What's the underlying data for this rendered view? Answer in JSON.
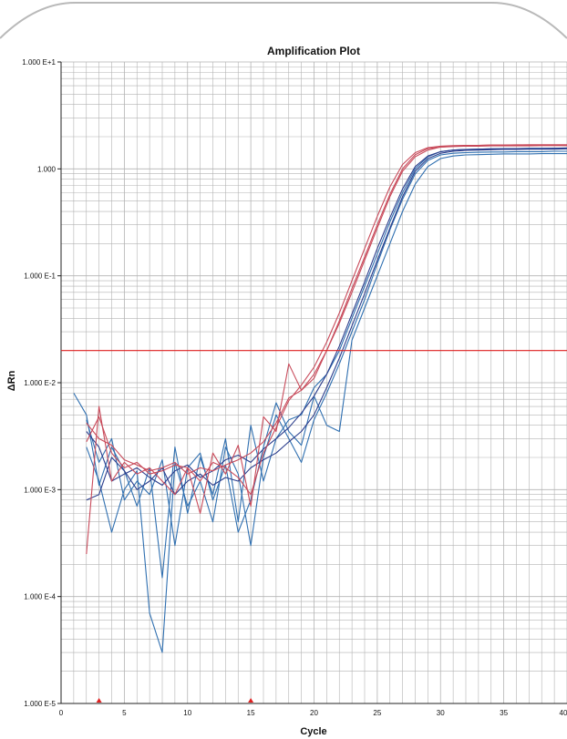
{
  "colors": {
    "background": "#ffffff",
    "frame_stroke": "#b9b9b9",
    "grid": "#b3b3b3",
    "threshold": "#e02020",
    "marker": "#e02020",
    "series_blue": "#2f6fb0",
    "series_navy": "#2b3d8c",
    "series_red": "#c84a5a"
  },
  "chart_data": {
    "type": "line",
    "title": "Amplification Plot",
    "xlabel": "Cycle",
    "ylabel": "ΔRn",
    "yscale": "log",
    "xlim": [
      0,
      40
    ],
    "ylim": [
      1e-05,
      10
    ],
    "x_ticks": [
      "0",
      "5",
      "10",
      "15",
      "20",
      "25",
      "30",
      "35",
      "40"
    ],
    "y_ticks": [
      "1.000 E-5",
      "1.000 E-4",
      "1.000 E-3",
      "1.000 E-2",
      "1.000 E-1",
      "1.000",
      "1.000 E+1"
    ],
    "grid": true,
    "threshold": 0.02,
    "baseline_markers_cycle": [
      3,
      15
    ],
    "series": [
      {
        "color_key": "series_blue",
        "x": [
          1,
          2,
          3,
          4,
          5,
          6,
          7,
          8,
          9,
          10,
          11,
          12,
          13,
          14,
          15,
          16,
          17,
          18,
          19,
          20,
          21,
          22,
          23,
          24,
          25,
          26,
          27,
          28,
          29,
          30,
          31,
          32,
          33,
          34,
          35,
          36,
          37,
          38,
          39,
          40
        ],
        "values": [
          0.008,
          0.005,
          0.0011,
          0.0025,
          0.0015,
          0.0007,
          0.0016,
          0.00015,
          0.0025,
          0.0006,
          0.002,
          0.0009,
          0.003,
          0.0005,
          0.004,
          0.0012,
          0.003,
          0.0045,
          0.005,
          0.009,
          0.012,
          0.02,
          0.04,
          0.08,
          0.16,
          0.32,
          0.6,
          1.0,
          1.3,
          1.45,
          1.5,
          1.52,
          1.53,
          1.54,
          1.55,
          1.55,
          1.56,
          1.56,
          1.56,
          1.57
        ]
      },
      {
        "color_key": "series_blue",
        "x": [
          2,
          3,
          4,
          5,
          6,
          7,
          8,
          9,
          10,
          11,
          12,
          13,
          14,
          15,
          16,
          17,
          18,
          19,
          20,
          21,
          22,
          23,
          24,
          25,
          26,
          27,
          28,
          29,
          30,
          31,
          32,
          33,
          34,
          35,
          36,
          37,
          38,
          39,
          40
        ],
        "values": [
          0.0025,
          0.0012,
          0.0004,
          0.001,
          0.0015,
          7e-05,
          3e-05,
          0.0018,
          0.0007,
          0.0012,
          0.0005,
          0.0025,
          0.0014,
          0.0003,
          0.002,
          0.005,
          0.003,
          0.0018,
          0.0045,
          0.008,
          0.015,
          0.03,
          0.06,
          0.13,
          0.27,
          0.52,
          0.9,
          1.2,
          1.35,
          1.4,
          1.42,
          1.43,
          1.44,
          1.44,
          1.45,
          1.45,
          1.45,
          1.46,
          1.46
        ]
      },
      {
        "color_key": "series_blue",
        "x": [
          2,
          3,
          4,
          5,
          6,
          7,
          8,
          9,
          10,
          11,
          12,
          13,
          14,
          15,
          16,
          17,
          18,
          19,
          20,
          21,
          22,
          23,
          24,
          25,
          26,
          27,
          28,
          29,
          30,
          31,
          32,
          33,
          34,
          35,
          36,
          37,
          38,
          39,
          40
        ],
        "values": [
          0.0045,
          0.0018,
          0.003,
          0.0008,
          0.0012,
          0.0009,
          0.0019,
          0.0003,
          0.0016,
          0.0022,
          0.0008,
          0.0017,
          0.0004,
          0.0008,
          0.0025,
          0.0065,
          0.0035,
          0.0026,
          0.0075,
          0.004,
          0.0035,
          0.025,
          0.05,
          0.1,
          0.2,
          0.4,
          0.72,
          1.05,
          1.25,
          1.32,
          1.35,
          1.36,
          1.37,
          1.38,
          1.38,
          1.38,
          1.39,
          1.39,
          1.39
        ]
      },
      {
        "color_key": "series_navy",
        "x": [
          2,
          3,
          4,
          5,
          6,
          7,
          8,
          9,
          10,
          11,
          12,
          13,
          14,
          15,
          16,
          17,
          18,
          19,
          20,
          21,
          22,
          23,
          24,
          25,
          26,
          27,
          28,
          29,
          30,
          31,
          32,
          33,
          34,
          35,
          36,
          37,
          38,
          39,
          40
        ],
        "values": [
          0.0008,
          0.0009,
          0.002,
          0.0015,
          0.001,
          0.0012,
          0.0016,
          0.0009,
          0.0012,
          0.0014,
          0.0011,
          0.0013,
          0.0012,
          0.0016,
          0.0019,
          0.0022,
          0.0028,
          0.0035,
          0.005,
          0.009,
          0.017,
          0.034,
          0.068,
          0.14,
          0.28,
          0.55,
          0.95,
          1.25,
          1.4,
          1.46,
          1.49,
          1.5,
          1.51,
          1.52,
          1.52,
          1.53,
          1.53,
          1.53,
          1.54
        ]
      },
      {
        "color_key": "series_navy",
        "x": [
          2,
          3,
          4,
          5,
          6,
          7,
          8,
          9,
          10,
          11,
          12,
          13,
          14,
          15,
          16,
          17,
          18,
          19,
          20,
          21,
          22,
          23,
          24,
          25,
          26,
          27,
          28,
          29,
          30,
          31,
          32,
          33,
          34,
          35,
          36,
          37,
          38,
          39,
          40
        ],
        "values": [
          0.0035,
          0.0025,
          0.0012,
          0.0014,
          0.0016,
          0.0013,
          0.0011,
          0.0015,
          0.0017,
          0.0013,
          0.0015,
          0.0019,
          0.0021,
          0.0018,
          0.0024,
          0.003,
          0.0038,
          0.0052,
          0.0075,
          0.012,
          0.022,
          0.044,
          0.088,
          0.18,
          0.35,
          0.65,
          1.05,
          1.32,
          1.45,
          1.5,
          1.52,
          1.53,
          1.54,
          1.54,
          1.55,
          1.55,
          1.55,
          1.56,
          1.56
        ]
      },
      {
        "color_key": "series_red",
        "x": [
          2,
          3,
          4,
          5,
          6,
          7,
          8,
          9,
          10,
          11,
          12,
          13,
          14,
          15,
          16,
          17,
          18,
          19,
          20,
          21,
          22,
          23,
          24,
          25,
          26,
          27,
          28,
          29,
          30,
          31,
          32,
          33,
          34,
          35,
          36,
          37,
          38,
          39,
          40
        ],
        "values": [
          0.00025,
          0.006,
          0.0012,
          0.0018,
          0.0014,
          0.0016,
          0.0012,
          0.0009,
          0.0016,
          0.0006,
          0.0022,
          0.0014,
          0.0026,
          0.0007,
          0.0048,
          0.0035,
          0.015,
          0.0085,
          0.011,
          0.02,
          0.036,
          0.07,
          0.14,
          0.28,
          0.55,
          0.95,
          1.3,
          1.5,
          1.6,
          1.63,
          1.65,
          1.66,
          1.67,
          1.67,
          1.68,
          1.68,
          1.68,
          1.68,
          1.68
        ]
      },
      {
        "color_key": "series_red",
        "x": [
          2,
          3,
          4,
          5,
          6,
          7,
          8,
          9,
          10,
          11,
          12,
          13,
          14,
          15,
          16,
          17,
          18,
          19,
          20,
          21,
          22,
          23,
          24,
          25,
          26,
          27,
          28,
          29,
          30,
          31,
          32,
          33,
          34,
          35,
          36,
          37,
          38,
          39,
          40
        ],
        "values": [
          0.0028,
          0.0048,
          0.0022,
          0.0016,
          0.0018,
          0.0014,
          0.0015,
          0.0017,
          0.0016,
          0.0012,
          0.0018,
          0.0016,
          0.0013,
          0.0009,
          0.0022,
          0.0038,
          0.0068,
          0.0095,
          0.014,
          0.024,
          0.045,
          0.09,
          0.18,
          0.36,
          0.68,
          1.1,
          1.42,
          1.58,
          1.63,
          1.65,
          1.66,
          1.66,
          1.67,
          1.67,
          1.67,
          1.68,
          1.68,
          1.68,
          1.68
        ]
      },
      {
        "color_key": "series_red",
        "x": [
          2,
          3,
          4,
          5,
          6,
          7,
          8,
          9,
          10,
          11,
          12,
          13,
          14,
          15,
          16,
          17,
          18,
          19,
          20,
          21,
          22,
          23,
          24,
          25,
          26,
          27,
          28,
          29,
          30,
          31,
          32,
          33,
          34,
          35,
          36,
          37,
          38,
          39,
          40
        ],
        "values": [
          0.0042,
          0.003,
          0.0026,
          0.0019,
          0.0017,
          0.0015,
          0.0016,
          0.0018,
          0.0014,
          0.0016,
          0.0015,
          0.0017,
          0.0019,
          0.0022,
          0.0028,
          0.0042,
          0.0072,
          0.0085,
          0.012,
          0.02,
          0.038,
          0.076,
          0.15,
          0.3,
          0.58,
          1.0,
          1.36,
          1.55,
          1.6,
          1.62,
          1.63,
          1.63,
          1.64,
          1.64,
          1.64,
          1.64,
          1.65,
          1.65,
          1.65
        ]
      }
    ]
  }
}
